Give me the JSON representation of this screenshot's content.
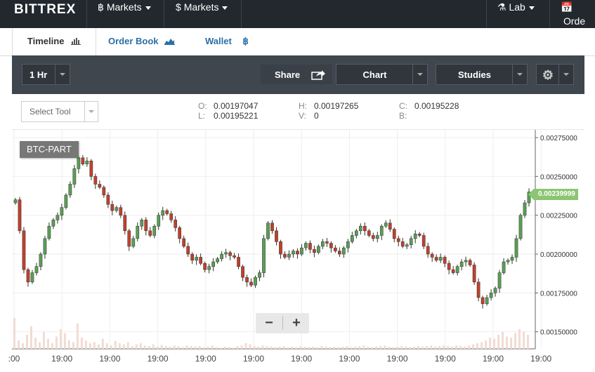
{
  "nav": {
    "logo": "BITTREX",
    "markets_btc": "Markets",
    "markets_usd": "Markets",
    "lab": "Lab",
    "orders": "Orde"
  },
  "tabs": [
    {
      "label": "Timeline",
      "active": true
    },
    {
      "label": "Order Book",
      "active": false
    },
    {
      "label": "Wallet",
      "active": false
    }
  ],
  "toolbar": {
    "interval": "1 Hr",
    "share": "Share",
    "chart": "Chart",
    "studies": "Studies"
  },
  "select_tool": "Select Tool",
  "ohlc": {
    "o_label": "O:",
    "o_value": "0.00197047",
    "h_label": "H:",
    "h_value": "0.00197265",
    "c_label": "C:",
    "c_value": "0.00195228",
    "l_label": "L:",
    "l_value": "0.00195221",
    "v_label": "V:",
    "v_value": "0",
    "b_label": "B:",
    "b_value": ""
  },
  "market_badge": "BTC-PART",
  "current_price": "0.00239999",
  "chart_data": {
    "type": "candlestick",
    "yticks": [
      "0.00275000",
      "0.00250000",
      "0.00225000",
      "0.00200000",
      "0.00175000",
      "0.00150000"
    ],
    "xticks": [
      ":00",
      "19:00",
      "19:00",
      "19:00",
      "19:00",
      "19:00",
      "19:00",
      "19:00",
      "19:00",
      "19:00",
      "19:00",
      "19:00"
    ],
    "ylim": [
      0.00139,
      0.0028
    ],
    "close": [
      0.00235,
      0.00215,
      0.0019,
      0.00182,
      0.00188,
      0.00192,
      0.002,
      0.0021,
      0.00218,
      0.00222,
      0.00225,
      0.0023,
      0.00238,
      0.00245,
      0.00255,
      0.00262,
      0.00258,
      0.0026,
      0.0025,
      0.00245,
      0.00243,
      0.00238,
      0.00232,
      0.00228,
      0.0023,
      0.00225,
      0.00215,
      0.00205,
      0.0021,
      0.00218,
      0.00222,
      0.00215,
      0.00212,
      0.00218,
      0.00225,
      0.00228,
      0.00226,
      0.00222,
      0.00217,
      0.0021,
      0.00205,
      0.002,
      0.00196,
      0.00198,
      0.00194,
      0.0019,
      0.00192,
      0.00195,
      0.00197,
      0.002,
      0.00201,
      0.00199,
      0.00198,
      0.00192,
      0.00185,
      0.00182,
      0.0018,
      0.00185,
      0.00188,
      0.0021,
      0.0022,
      0.00215,
      0.00208,
      0.002,
      0.00198,
      0.002,
      0.00202,
      0.002,
      0.00204,
      0.00207,
      0.00203,
      0.00201,
      0.00205,
      0.00208,
      0.00207,
      0.00204,
      0.00202,
      0.002,
      0.00204,
      0.00208,
      0.00212,
      0.00215,
      0.00218,
      0.00215,
      0.00212,
      0.0021,
      0.00212,
      0.00218,
      0.0022,
      0.00216,
      0.0021,
      0.00208,
      0.00205,
      0.00206,
      0.0021,
      0.00213,
      0.00212,
      0.00205,
      0.002,
      0.00198,
      0.00196,
      0.00198,
      0.00194,
      0.0019,
      0.00188,
      0.00192,
      0.00195,
      0.00196,
      0.00193,
      0.00182,
      0.00172,
      0.00168,
      0.00172,
      0.00175,
      0.00178,
      0.00188,
      0.00195,
      0.00196,
      0.00198,
      0.0021,
      0.00225,
      0.00233,
      0.0024
    ],
    "volume": [
      0.55,
      0.15,
      0.1,
      0.25,
      0.4,
      0.2,
      0.12,
      0.3,
      0.18,
      0.1,
      0.22,
      0.35,
      0.28,
      0.15,
      0.12,
      0.45,
      0.2,
      0.15,
      0.1,
      0.12,
      0.08,
      0.18,
      0.1,
      0.06,
      0.14,
      0.1,
      0.08,
      0.12,
      0.05,
      0.08,
      0.1,
      0.06,
      0.05,
      0.08,
      0.04,
      0.07,
      0.05,
      0.04,
      0.06,
      0.05,
      0.03,
      0.06,
      0.05,
      0.04,
      0.05,
      0.03,
      0.04,
      0.06,
      0.03,
      0.02,
      0.04,
      0.03,
      0.02,
      0.05,
      0.06,
      0.1,
      0.08,
      0.05,
      0.04,
      0.06,
      0.05,
      0.04,
      0.03,
      0.04,
      0.05,
      0.03,
      0.04,
      0.03,
      0.05,
      0.04,
      0.03,
      0.04,
      0.03,
      0.05,
      0.04,
      0.03,
      0.04,
      0.03,
      0.04,
      0.05,
      0.03,
      0.04,
      0.05,
      0.06,
      0.04,
      0.03,
      0.04,
      0.05,
      0.06,
      0.04,
      0.03,
      0.04,
      0.05,
      0.04,
      0.03,
      0.04,
      0.05,
      0.04,
      0.05,
      0.06,
      0.04,
      0.05,
      0.06,
      0.05,
      0.04,
      0.06,
      0.05,
      0.04,
      0.06,
      0.08,
      0.1,
      0.12,
      0.15,
      0.2,
      0.18,
      0.25,
      0.3,
      0.22,
      0.2,
      0.28,
      0.35,
      0.3,
      0.25
    ],
    "grid": true
  }
}
